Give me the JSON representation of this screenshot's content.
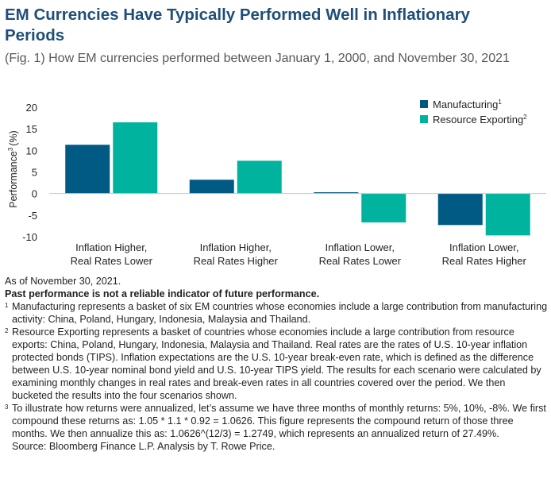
{
  "title": "EM Currencies Have Typically Performed Well in Inflationary Periods",
  "subtitle": "(Fig. 1) How EM currencies performed between January 1, 2000, and November 30, 2021",
  "chart_data": {
    "type": "bar",
    "title": "EM Currencies Have Typically Performed Well in Inflationary Periods",
    "ylabel": "Performance",
    "ylabel_sup": "3",
    "ylabel_suffix": "(%)",
    "ylim": [
      -10,
      20
    ],
    "yticks": [
      20,
      15,
      10,
      5,
      0,
      -5,
      -10
    ],
    "grid": false,
    "legend_position": "top-right",
    "categories": [
      {
        "line1": "Inflation Higher,",
        "line2": "Real Rates Lower"
      },
      {
        "line1": "Inflation Higher,",
        "line2": "Real Rates Higher"
      },
      {
        "line1": "Inflation Lower,",
        "line2": "Real Rates Lower"
      },
      {
        "line1": "Inflation Lower,",
        "line2": "Real Rates Higher"
      }
    ],
    "series": [
      {
        "name": "Manufacturing",
        "sup": "1",
        "color": "#005a84",
        "values": [
          11.3,
          3.2,
          0.3,
          -7.3
        ]
      },
      {
        "name": "Resource Exporting",
        "sup": "2",
        "color": "#00b39e",
        "values": [
          16.5,
          7.6,
          -6.7,
          -9.7
        ]
      }
    ]
  },
  "notes": {
    "as_of": "As of November 30, 2021.",
    "disclaimer": "Past performance is not a reliable indicator of future performance.",
    "footnotes": [
      {
        "mark": "1",
        "text": "Manufacturing represents a basket of six EM countries whose economies include a large contribution from manufacturing activity: China, Poland, Hungary, Indonesia, Malaysia and Thailand."
      },
      {
        "mark": "2",
        "text": "Resource Exporting represents a basket of countries whose economies include a large contribution from resource exports: China, Poland, Hungary, Indonesia, Malaysia and Thailand. Real rates are the rates of U.S. 10-year inflation protected bonds (TIPS). Inflation expectations are the U.S. 10-year break-even rate, which is defined as the difference between U.S. 10-year nominal bond yield and U.S. 10-year TIPS yield. The results for each scenario were calculated by examining monthly changes in real rates and break-even rates in all countries covered over the period. We then bucketed the results into the four scenarios shown."
      },
      {
        "mark": "3",
        "text": "To illustrate how returns were annualized, let’s assume we have three months of monthly returns: 5%, 10%, -8%. We first compound these returns as: 1.05 * 1.1 * 0.92 = 1.0626. This figure represents the compound return of those three months. We then annualize this as: 1.0626^(12/3) = 1.2749, which represents an annualized return of 27.49%."
      }
    ],
    "source": "Source: Bloomberg Finance L.P. Analysis by T. Rowe Price."
  }
}
